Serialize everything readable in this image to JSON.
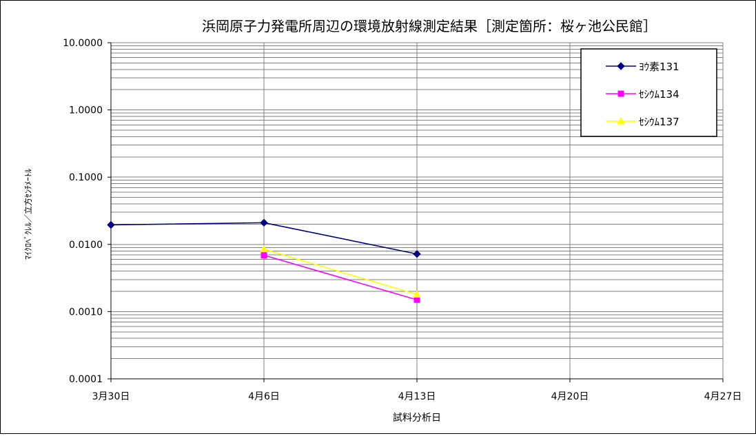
{
  "chart_data": {
    "type": "line",
    "title": "浜岡原子力発電所周辺の環境放射線測定結果［測定箇所：桜ヶ池公民館］",
    "xlabel": "試料分析日",
    "ylabel": "ﾏｲｸﾛﾍﾞｸﾚﾙ／立方ｾﾝﾁﾒｰﾄﾙ",
    "y_scale": "log",
    "ylim": [
      0.0001,
      10
    ],
    "y_ticks": [
      {
        "value": 10,
        "label": "10.0000"
      },
      {
        "value": 1,
        "label": "1.0000"
      },
      {
        "value": 0.1,
        "label": "0.1000"
      },
      {
        "value": 0.01,
        "label": "0.0100"
      },
      {
        "value": 0.001,
        "label": "0.0010"
      },
      {
        "value": 0.0001,
        "label": "0.0001"
      }
    ],
    "x_ticks": [
      {
        "date": "03-30",
        "label": "3月30日"
      },
      {
        "date": "04-06",
        "label": "4月6日"
      },
      {
        "date": "04-13",
        "label": "4月13日"
      },
      {
        "date": "04-20",
        "label": "4月20日"
      },
      {
        "date": "04-27",
        "label": "4月27日"
      }
    ],
    "xlim": [
      "03-30",
      "04-27"
    ],
    "grid": true,
    "legend_position": "top-right",
    "series": [
      {
        "name": "ﾖｳ素131",
        "color": "#000080",
        "marker": "diamond",
        "points": [
          {
            "x": "03-30",
            "y": 0.0195
          },
          {
            "x": "04-06",
            "y": 0.021
          },
          {
            "x": "04-13",
            "y": 0.0072
          }
        ]
      },
      {
        "name": "ｾｼｳﾑ134",
        "color": "#ff00ff",
        "marker": "square",
        "points": [
          {
            "x": "04-06",
            "y": 0.0069
          },
          {
            "x": "04-13",
            "y": 0.0015
          }
        ]
      },
      {
        "name": "ｾｼｳﾑ137",
        "color": "#ffff00",
        "marker": "triangle",
        "points": [
          {
            "x": "04-06",
            "y": 0.0085
          },
          {
            "x": "04-13",
            "y": 0.0018
          }
        ]
      }
    ]
  }
}
